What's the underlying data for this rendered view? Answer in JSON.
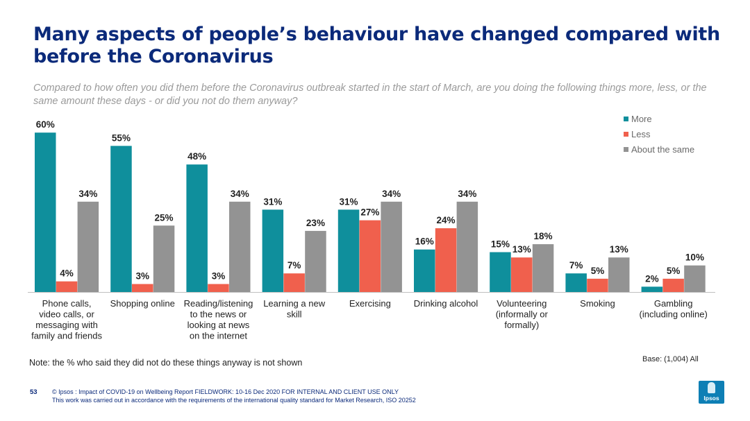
{
  "title": "Many aspects of people’s behaviour have changed compared with before the Coronavirus",
  "subtitle": "Compared to how often you did them before the Coronavirus outbreak started in the start of March, are you doing the following things more, less, or the same amount these days - or did you not do them anyway?",
  "note": "Note: the % who said they did not do these things anyway is not shown",
  "base": "Base: (1,004) All",
  "footer": {
    "page": "53",
    "line1": "© Ipsos : Impact of COVID-19 on Wellbeing Report FIELDWORK: 10-16 Dec 2020 FOR INTERNAL AND CLIENT USE ONLY",
    "line2": "This work was carried out in accordance with the requirements of the international quality standard for Market Research, ISO 20252"
  },
  "logo_text": "Ipsos",
  "legend": [
    {
      "label": "More",
      "color": "#0f8f9c"
    },
    {
      "label": "Less",
      "color": "#f0604d"
    },
    {
      "label": "About the same",
      "color": "#939393"
    }
  ],
  "chart_data": {
    "type": "bar",
    "categories": [
      [
        "Phone calls,",
        "video calls, or",
        "messaging with",
        "family and friends"
      ],
      [
        "Shopping online"
      ],
      [
        "Reading/listening",
        "to the news or",
        "looking at news",
        "on the internet"
      ],
      [
        "Learning a new",
        "skill"
      ],
      [
        "Exercising"
      ],
      [
        "Drinking alcohol"
      ],
      [
        "Volunteering",
        "(informally or",
        "formally)"
      ],
      [
        "Smoking"
      ],
      [
        "Gambling",
        "(including online)"
      ]
    ],
    "series": [
      {
        "name": "More",
        "color": "#0f8f9c",
        "values": [
          60,
          55,
          48,
          31,
          31,
          16,
          15,
          7,
          2
        ]
      },
      {
        "name": "Less",
        "color": "#f0604d",
        "values": [
          4,
          3,
          3,
          7,
          27,
          24,
          13,
          5,
          5
        ]
      },
      {
        "name": "About the same",
        "color": "#939393",
        "values": [
          34,
          25,
          34,
          23,
          34,
          34,
          18,
          13,
          10
        ]
      }
    ],
    "value_suffix": "%",
    "ylim": [
      0,
      60
    ],
    "legend_position": "top-right",
    "grid": false
  }
}
